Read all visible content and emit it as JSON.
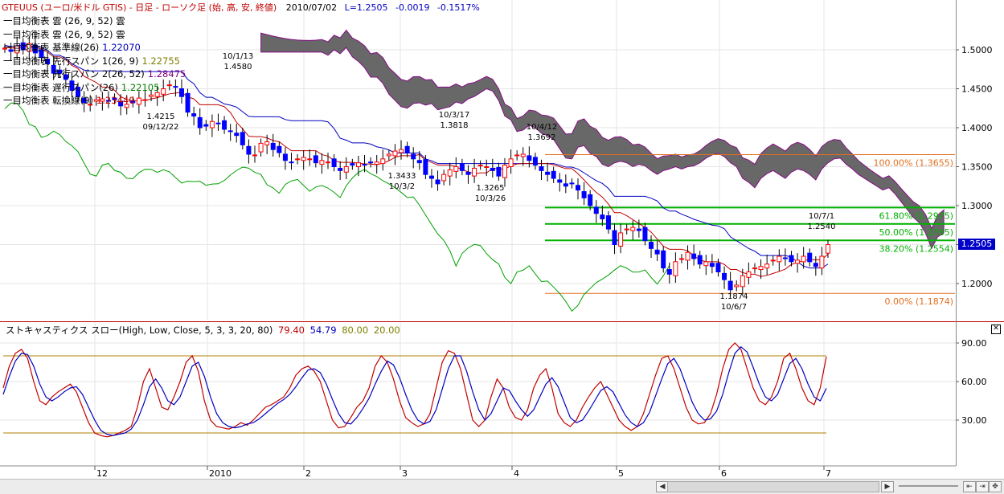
{
  "header": {
    "symbol": "GTEUUS (ユーロ/米ドル GTIS) - 日足 - ローソク足 (始, 高, 安, 終値)",
    "date": "2010/07/02",
    "last": "L=1.2505",
    "change": "-0.0019",
    "change_pct": "-0.1517%"
  },
  "legend": [
    {
      "label": "一目均衡表 雲 (26, 9, 52) 雲",
      "value": "",
      "color": "#000000"
    },
    {
      "label": "一目均衡表 雲 (26, 9, 52) 雲",
      "value": "",
      "color": "#000000"
    },
    {
      "label": "一目均衡表 基準線(26)",
      "value": "1.22070",
      "color": "#0000c0"
    },
    {
      "label": "一目均衡表 先行スパン 1(26, 9)",
      "value": "1.22755",
      "color": "#808000"
    },
    {
      "label": "一目均衡表 先行スパン 2(26, 52)",
      "value": "1.28475",
      "color": "#800080"
    },
    {
      "label": "一目均衡表 遅行スパン(26)",
      "value": "1.22105",
      "color": "#008000"
    },
    {
      "label": "一目均衡表 転換線(9)",
      "value": "1.23440",
      "color": "#c00000"
    }
  ],
  "price_tag": "1.2505",
  "fib_labels": [
    "100.00% (1.3655)",
    "61.80% (1.2975)",
    "50.00% (1.2765)",
    "38.20% (1.2554)",
    "0.00% (1.1874)"
  ],
  "annotations": [
    {
      "date": "09/12/22",
      "price": "1.4215"
    },
    {
      "date": "10/1/13",
      "price": "1.4580"
    },
    {
      "date": "10/3/2",
      "price": "1.3433"
    },
    {
      "date": "10/3/17",
      "price": "1.3818"
    },
    {
      "date": "10/3/26",
      "price": "1.3265"
    },
    {
      "date": "10/4/12",
      "price": "1.3692"
    },
    {
      "date": "10/6/7",
      "price": "1.1874"
    },
    {
      "date": "10/7/1",
      "price": "1.2540"
    }
  ],
  "stoch_header": {
    "title": "ストキャスティクス スロー(High, Low, Close, 5, 3, 3, 20, 80)",
    "k": "79.40",
    "d": "54.79",
    "upper": "80.00",
    "lower": "20.00"
  },
  "colors": {
    "candle_up": "#ff0000",
    "candle_down": "#0000ff",
    "kijun": "#0000c0",
    "tenkan": "#c00000",
    "chikou": "#00a000",
    "cloud": "#606060",
    "fib_green": "#00b000",
    "fib_orange": "#e07020",
    "stoch_k": "#c00000",
    "stoch_d": "#0000c0",
    "stoch_level": "#b08000"
  },
  "chart_data": [
    {
      "type": "candlestick",
      "title": "GTEUUS (ユーロ/米ドル GTIS) - 日足 - ローソク足 (始, 高, 安, 終値)",
      "y_axis_ticks": [
        "1.5000",
        "1.4500",
        "1.4000",
        "1.3500",
        "1.3000",
        "1.2500",
        "1.2000"
      ],
      "x_axis_ticks": [
        "12",
        "2010",
        "2",
        "3",
        "4",
        "5",
        "6",
        "7"
      ],
      "ylim": [
        1.17,
        1.53
      ],
      "fibonacci": {
        "high": 1.3655,
        "low": 1.1874,
        "levels": [
          [
            1.0,
            1.3655
          ],
          [
            0.618,
            1.2975
          ],
          [
            0.5,
            1.2765
          ],
          [
            0.382,
            1.2554
          ],
          [
            0.0,
            1.1874
          ]
        ]
      },
      "close_series": [
        1.502,
        1.498,
        1.505,
        1.5,
        1.508,
        1.496,
        1.49,
        1.482,
        1.47,
        1.47,
        1.462,
        1.448,
        1.44,
        1.432,
        1.43,
        1.436,
        1.437,
        1.434,
        1.436,
        1.428,
        1.43,
        1.432,
        1.438,
        1.436,
        1.442,
        1.445,
        1.45,
        1.455,
        1.452,
        1.44,
        1.42,
        1.415,
        1.4,
        1.402,
        1.408,
        1.405,
        1.398,
        1.395,
        1.39,
        1.378,
        1.366,
        1.365,
        1.38,
        1.382,
        1.372,
        1.368,
        1.358,
        1.355,
        1.36,
        1.362,
        1.36,
        1.355,
        1.358,
        1.356,
        1.35,
        1.345,
        1.35,
        1.352,
        1.355,
        1.352,
        1.355,
        1.356,
        1.36,
        1.366,
        1.37,
        1.372,
        1.368,
        1.36,
        1.355,
        1.34,
        1.335,
        1.328,
        1.34,
        1.346,
        1.35,
        1.345,
        1.34,
        1.348,
        1.352,
        1.35,
        1.345,
        1.338,
        1.352,
        1.36,
        1.365,
        1.366,
        1.358,
        1.352,
        1.345,
        1.34,
        1.335,
        1.33,
        1.325,
        1.328,
        1.32,
        1.31,
        1.3,
        1.29,
        1.283,
        1.27,
        1.25,
        1.265,
        1.27,
        1.272,
        1.268,
        1.255,
        1.245,
        1.238,
        1.22,
        1.212,
        1.228,
        1.232,
        1.24,
        1.232,
        1.225,
        1.228,
        1.222,
        1.215,
        1.205,
        1.192,
        1.198,
        1.21,
        1.215,
        1.22,
        1.222,
        1.225,
        1.23,
        1.235,
        1.232,
        1.228,
        1.23,
        1.235,
        1.228,
        1.222,
        1.235,
        1.25
      ]
    },
    {
      "type": "line",
      "title": "ストキャスティクス スロー(High, Low, Close, 5, 3, 3, 20, 80)",
      "y_axis_ticks": [
        "90.00",
        "60.00",
        "30.00"
      ],
      "ylim": [
        0,
        100
      ],
      "series": [
        {
          "name": "K",
          "values": [
            55,
            72,
            82,
            85,
            78,
            60,
            45,
            42,
            48,
            52,
            55,
            58,
            52,
            40,
            28,
            20,
            18,
            17,
            18,
            20,
            22,
            25,
            40,
            60,
            70,
            55,
            40,
            38,
            48,
            60,
            75,
            80,
            68,
            45,
            30,
            25,
            24,
            23,
            25,
            28,
            26,
            30,
            35,
            40,
            42,
            45,
            48,
            55,
            65,
            70,
            72,
            68,
            60,
            45,
            30,
            24,
            25,
            32,
            40,
            45,
            55,
            72,
            80,
            75,
            62,
            45,
            32,
            28,
            25,
            27,
            35,
            55,
            75,
            84,
            82,
            70,
            50,
            30,
            25,
            30,
            48,
            62,
            55,
            40,
            32,
            30,
            38,
            55,
            65,
            70,
            55,
            35,
            28,
            25,
            30,
            40,
            48,
            55,
            60,
            50,
            40,
            30,
            25,
            22,
            25,
            35,
            50,
            65,
            78,
            80,
            70,
            55,
            40,
            30,
            27,
            28,
            35,
            50,
            70,
            85,
            90,
            85,
            70,
            55,
            45,
            42,
            48,
            60,
            78,
            82,
            70,
            55,
            45,
            42,
            55,
            79.4
          ]
        },
        {
          "name": "D",
          "values": [
            50,
            64,
            76,
            82,
            81,
            72,
            58,
            48,
            45,
            48,
            52,
            55,
            56,
            50,
            40,
            30,
            22,
            19,
            18,
            19,
            20,
            23,
            30,
            42,
            56,
            62,
            55,
            45,
            42,
            48,
            60,
            72,
            75,
            64,
            48,
            35,
            28,
            25,
            24,
            25,
            27,
            28,
            31,
            35,
            39,
            43,
            46,
            50,
            56,
            63,
            69,
            70,
            67,
            58,
            46,
            35,
            28,
            27,
            32,
            39,
            47,
            58,
            68,
            76,
            73,
            63,
            50,
            38,
            30,
            27,
            29,
            38,
            54,
            70,
            80,
            80,
            68,
            52,
            38,
            30,
            35,
            45,
            55,
            53,
            45,
            38,
            33,
            38,
            48,
            58,
            63,
            56,
            44,
            32,
            28,
            30,
            37,
            45,
            53,
            56,
            52,
            43,
            34,
            28,
            25,
            28,
            36,
            49,
            62,
            74,
            78,
            70,
            57,
            44,
            35,
            30,
            31,
            37,
            50,
            67,
            82,
            87,
            83,
            71,
            58,
            48,
            45,
            50,
            62,
            74,
            78,
            70,
            58,
            48,
            45,
            54.79
          ]
        }
      ],
      "levels": [
        80,
        20
      ]
    }
  ]
}
